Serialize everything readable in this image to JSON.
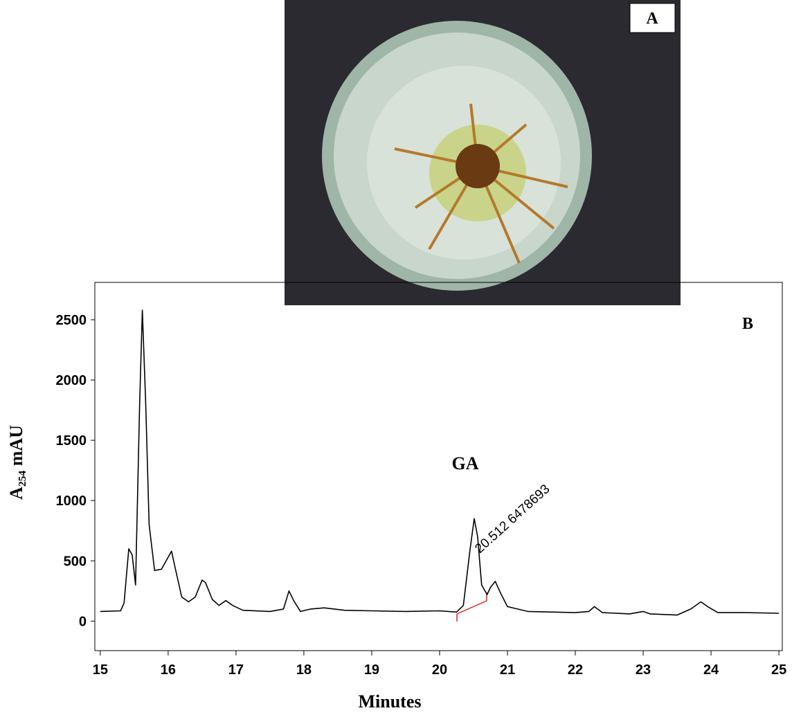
{
  "panel_a": {
    "label": "A"
  },
  "chart_data": {
    "type": "line",
    "panel_label": "B",
    "x_label": "Minutes",
    "y_label": "A₂₅₄ mAU",
    "annotations": [
      "GA",
      "20.512 6478693"
    ],
    "color": "#000000",
    "x": [
      15.0,
      15.3,
      15.35,
      15.42,
      15.47,
      15.52,
      15.58,
      15.62,
      15.67,
      15.72,
      15.8,
      15.9,
      16.0,
      16.05,
      16.1,
      16.2,
      16.3,
      16.4,
      16.5,
      16.55,
      16.65,
      16.75,
      16.85,
      16.95,
      17.1,
      17.5,
      17.7,
      17.78,
      17.85,
      17.95,
      18.1,
      18.3,
      18.6,
      19.0,
      19.5,
      20.0,
      20.25,
      20.35,
      20.45,
      20.51,
      20.56,
      20.62,
      20.7,
      20.75,
      20.82,
      20.9,
      21.0,
      21.3,
      22.0,
      22.2,
      22.28,
      22.4,
      22.8,
      23.0,
      23.1,
      23.5,
      23.7,
      23.85,
      23.95,
      24.1,
      24.5,
      25.0
    ],
    "values": [
      80,
      85,
      150,
      600,
      550,
      300,
      1800,
      2580,
      1800,
      800,
      420,
      430,
      530,
      580,
      450,
      200,
      160,
      200,
      340,
      320,
      180,
      130,
      170,
      130,
      90,
      80,
      100,
      250,
      170,
      80,
      100,
      110,
      90,
      85,
      80,
      85,
      75,
      130,
      600,
      850,
      700,
      300,
      220,
      280,
      330,
      230,
      120,
      80,
      70,
      80,
      120,
      70,
      60,
      80,
      60,
      50,
      100,
      160,
      120,
      70,
      70,
      65
    ],
    "xlim": [
      14.92,
      25.05
    ],
    "ylim": [
      -245,
      2810
    ],
    "xticks": [
      15,
      16,
      17,
      18,
      19,
      20,
      21,
      22,
      23,
      24,
      25
    ],
    "yticks": [
      0,
      500,
      1000,
      1500,
      2000,
      2500
    ]
  }
}
